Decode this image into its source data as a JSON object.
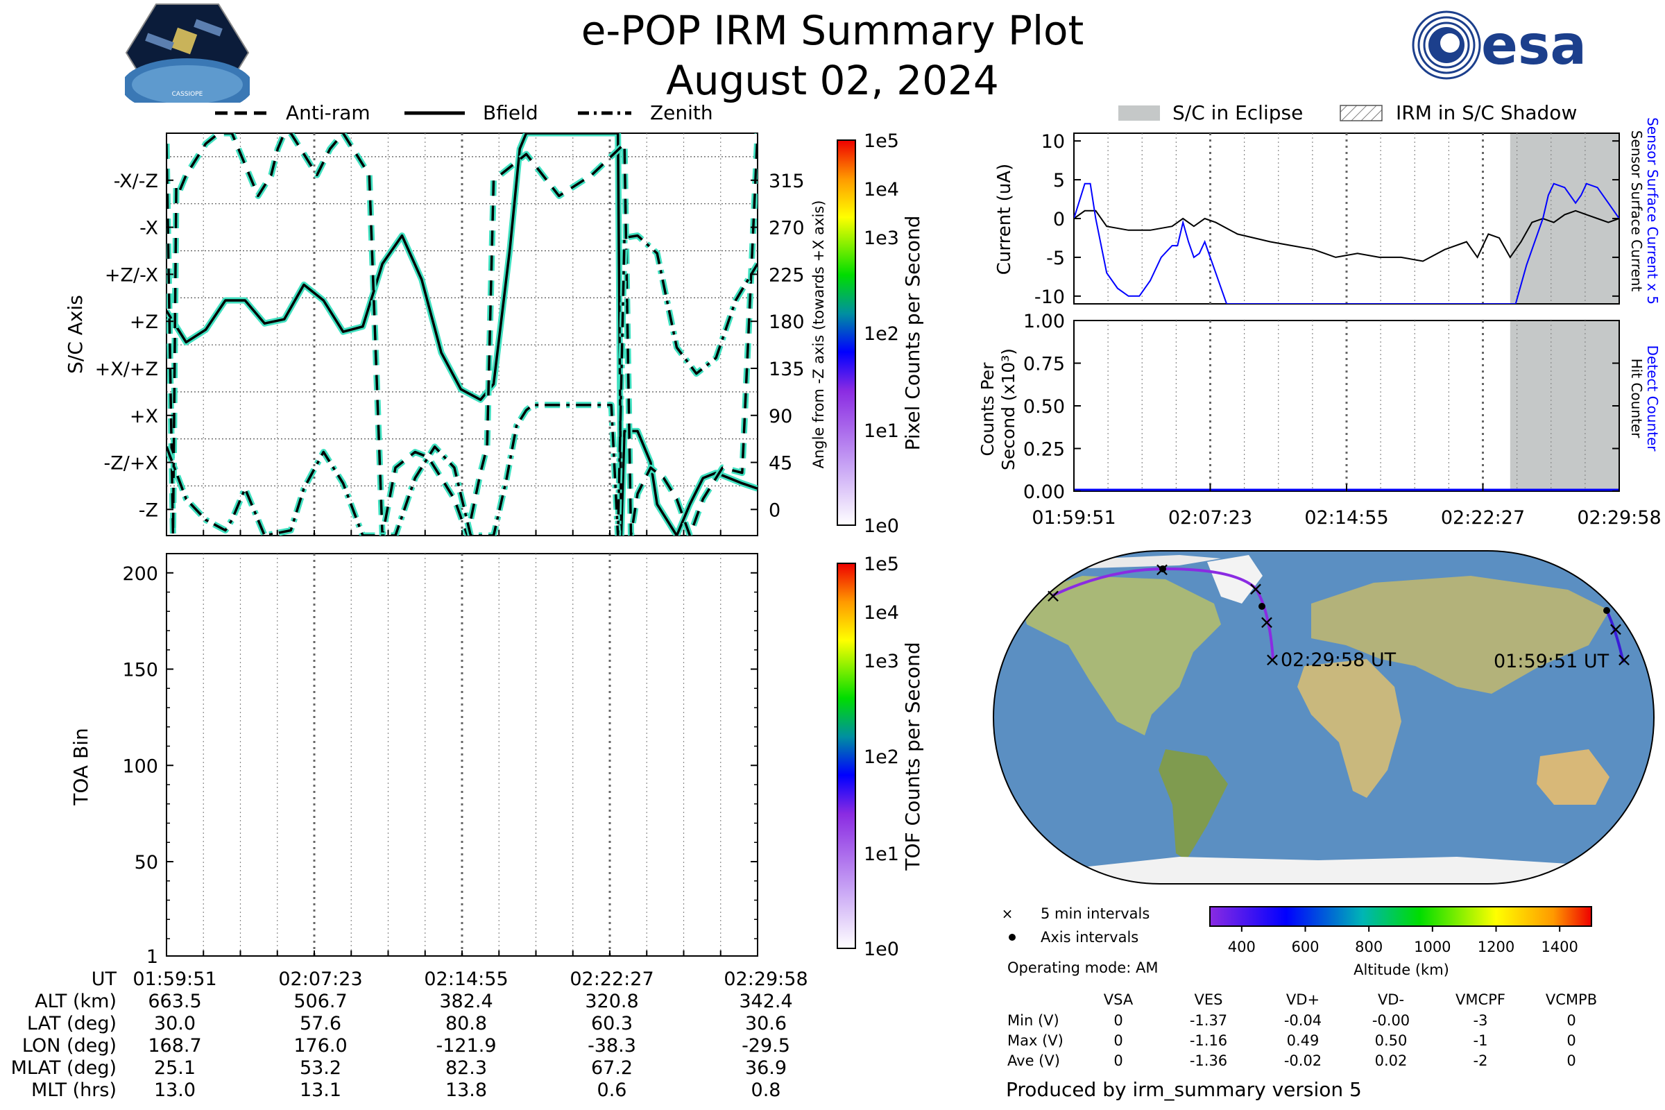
{
  "header": {
    "title_line1": "e-POP IRM Summary Plot",
    "title_line2": "August 02, 2024",
    "left_logo": "CASSIOPE mission patch",
    "left_logo_text": "CASSIOPE",
    "right_logo_text": "esa"
  },
  "chart_data": [
    {
      "type": "line",
      "title": "",
      "ylabel": "S/C Axis",
      "ylabel_right": "Angle from -Z axis (towards +X axis)",
      "yticks_left": [
        "-X/-Z",
        "-X",
        "+Z/-X",
        "+Z",
        "+X/+Z",
        "+X",
        "-Z/+X",
        "-Z"
      ],
      "yticks_right": [
        "315",
        "270",
        "225",
        "180",
        "135",
        "90",
        "45",
        "0"
      ],
      "ylim": [
        -25,
        360
      ],
      "xlim": [
        0,
        1807
      ],
      "legend": [
        "Anti-ram",
        "Bfield",
        "Zenith"
      ],
      "legend_placement": "top",
      "colorbar": {
        "label": "Pixel Counts per Second",
        "ticks": [
          "1e5",
          "1e4",
          "1e3",
          "1e2",
          "1e1",
          "1e0"
        ]
      },
      "series": [
        {
          "name": "Bfield",
          "x": [
            0,
            60,
            120,
            180,
            240,
            300,
            360,
            420,
            480,
            540,
            600,
            660,
            720,
            780,
            840,
            900,
            960,
            1000,
            1050,
            1080,
            1100,
            1200,
            1260,
            1300,
            1340,
            1380,
            1390,
            1400,
            1440,
            1480,
            1500,
            1560,
            1600,
            1640,
            1680,
            1720,
            1760,
            1807
          ],
          "y": [
            190,
            160,
            172,
            200,
            200,
            178,
            182,
            215,
            200,
            170,
            175,
            235,
            262,
            220,
            150,
            115,
            105,
            120,
            250,
            345,
            360,
            360,
            360,
            360,
            360,
            360,
            -25,
            75,
            75,
            45,
            5,
            -25,
            5,
            30,
            35,
            30,
            25,
            20
          ]
        },
        {
          "name": "Anti-ram",
          "x": [
            0,
            20,
            30,
            40,
            60,
            120,
            160,
            200,
            240,
            280,
            320,
            340,
            360,
            380,
            420,
            460,
            500,
            540,
            580,
            620,
            660,
            700,
            760,
            800,
            840,
            880,
            920,
            960,
            980,
            1000,
            1100,
            1200,
            1300,
            1400,
            1420,
            1440,
            1480,
            1520,
            1560,
            1600,
            1640,
            1700,
            1760,
            1807
          ],
          "y": [
            350,
            -25,
            310,
            305,
            320,
            350,
            360,
            360,
            330,
            300,
            320,
            345,
            360,
            360,
            340,
            320,
            345,
            360,
            340,
            320,
            -25,
            40,
            55,
            50,
            30,
            10,
            -25,
            35,
            60,
            315,
            340,
            300,
            320,
            350,
            -25,
            15,
            40,
            30,
            10,
            -25,
            10,
            40,
            35,
            360
          ]
        },
        {
          "name": "Zenith",
          "x": [
            0,
            60,
            120,
            180,
            200,
            240,
            300,
            380,
            420,
            480,
            540,
            600,
            640,
            700,
            760,
            820,
            880,
            930,
            960,
            1000,
            1040,
            1070,
            1100,
            1120,
            1140,
            1200,
            1280,
            1320,
            1360,
            1380,
            1400,
            1440,
            1500,
            1560,
            1620,
            1680,
            1740,
            1807
          ],
          "y": [
            60,
            10,
            -10,
            -20,
            -10,
            20,
            -25,
            -20,
            20,
            55,
            25,
            -25,
            -25,
            -25,
            30,
            60,
            40,
            -25,
            -25,
            -25,
            30,
            80,
            95,
            100,
            100,
            100,
            100,
            100,
            100,
            -25,
            260,
            262,
            245,
            155,
            130,
            145,
            200,
            235
          ]
        }
      ]
    },
    {
      "type": "heatmap",
      "ylabel": "TOA Bin",
      "yticks": [
        "200",
        "150",
        "100",
        "50",
        "1"
      ],
      "ylim": [
        1,
        210
      ],
      "xticks": [
        "01:59:51",
        "02:07:23",
        "02:14:55",
        "02:22:27",
        "02:29:58"
      ],
      "colorbar": {
        "label": "TOF Counts per Second",
        "ticks": [
          "1e5",
          "1e4",
          "1e3",
          "1e2",
          "1e1",
          "1e0"
        ]
      }
    },
    {
      "type": "line",
      "ylabel": "Current (uA)",
      "yticks": [
        "10",
        "5",
        "0",
        "-5",
        "-10"
      ],
      "ylim": [
        -11,
        11
      ],
      "right_labels": [
        "Sensor Surface Current x 5",
        "Sensor Surface Current"
      ],
      "legend": [
        "S/C in Eclipse",
        "IRM in S/C Shadow"
      ],
      "legend_placement": "top",
      "shaded_regions": [
        {
          "label": "S/C in Eclipse",
          "x": [
            0.8,
            1.0
          ]
        }
      ],
      "series": [
        {
          "name": "Sensor Surface Current",
          "color": "#000000",
          "x": [
            0,
            0.02,
            0.04,
            0.06,
            0.1,
            0.14,
            0.18,
            0.2,
            0.22,
            0.24,
            0.26,
            0.3,
            0.36,
            0.4,
            0.44,
            0.48,
            0.52,
            0.56,
            0.6,
            0.64,
            0.68,
            0.72,
            0.74,
            0.76,
            0.78,
            0.8,
            0.82,
            0.84,
            0.86,
            0.88,
            0.9,
            0.92,
            0.94,
            0.96,
            0.98,
            1.0
          ],
          "y": [
            0,
            1,
            1,
            -1,
            -1.5,
            -1.5,
            -1,
            0,
            -1,
            0,
            -0.5,
            -2,
            -3,
            -3.5,
            -4,
            -5,
            -4.5,
            -5,
            -5,
            -5.5,
            -4,
            -3,
            -5,
            -2,
            -2.5,
            -5,
            -3,
            -0.5,
            0,
            -0.5,
            0.5,
            1,
            0.5,
            0,
            -0.5,
            0
          ]
        },
        {
          "name": "Sensor Surface Current x 5",
          "color": "#0000ff",
          "x": [
            0,
            0.02,
            0.03,
            0.04,
            0.06,
            0.08,
            0.1,
            0.12,
            0.14,
            0.16,
            0.18,
            0.19,
            0.2,
            0.21,
            0.22,
            0.23,
            0.24,
            0.25,
            0.26,
            0.27,
            0.28,
            0.3,
            0.81,
            0.83,
            0.85,
            0.86,
            0.87,
            0.88,
            0.9,
            0.92,
            0.93,
            0.94,
            0.96,
            0.98,
            1.0
          ],
          "y": [
            0,
            4.5,
            4.5,
            0,
            -7,
            -9,
            -10,
            -10,
            -8,
            -5,
            -3.5,
            -3.5,
            -0.5,
            -3,
            -5,
            -4.5,
            -3,
            -5,
            -7,
            -9,
            -11,
            -11,
            -11,
            -6,
            -2,
            0,
            3,
            4.5,
            4,
            2,
            3,
            4.5,
            4,
            2,
            0
          ]
        }
      ]
    },
    {
      "type": "line",
      "ylabel": "Counts Per Second (x10³)",
      "yticks": [
        "1.00",
        "0.75",
        "0.50",
        "0.25",
        "0.00"
      ],
      "ylim": [
        0,
        1
      ],
      "right_labels": [
        "Detect Counter",
        "Hit Counter"
      ],
      "xticks": [
        "01:59:51",
        "02:07:23",
        "02:14:55",
        "02:22:27",
        "02:29:58"
      ],
      "series": [
        {
          "name": "Detect Counter",
          "color": "#0000ff",
          "x": [
            0,
            1
          ],
          "y": [
            0,
            0
          ]
        },
        {
          "name": "Hit Counter",
          "color": "#000000",
          "x": [
            0,
            1
          ],
          "y": [
            0,
            0
          ]
        }
      ]
    }
  ],
  "map": {
    "start_label": "01:59:51 UT",
    "end_label": "02:29:58 UT",
    "legend": [
      "5 min intervals",
      "Axis intervals"
    ],
    "operating_mode": "Operating mode: AM",
    "altitude_colorbar": {
      "label": "Altitude (km)",
      "ticks": [
        "400",
        "600",
        "800",
        "1000",
        "1200",
        "1400"
      ]
    }
  },
  "orbit_table": {
    "rows": [
      {
        "label": "UT",
        "values": [
          "01:59:51",
          "02:07:23",
          "02:14:55",
          "02:22:27",
          "02:29:58"
        ]
      },
      {
        "label": "ALT (km)",
        "values": [
          "663.5",
          "506.7",
          "382.4",
          "320.8",
          "342.4"
        ]
      },
      {
        "label": "LAT (deg)",
        "values": [
          "30.0",
          "57.6",
          "80.8",
          "60.3",
          "30.6"
        ]
      },
      {
        "label": "LON (deg)",
        "values": [
          "168.7",
          "176.0",
          "-121.9",
          "-38.3",
          "-29.5"
        ]
      },
      {
        "label": "MLAT (deg)",
        "values": [
          "25.1",
          "53.2",
          "82.3",
          "67.2",
          "36.9"
        ]
      },
      {
        "label": "MLT (hrs)",
        "values": [
          "13.0",
          "13.1",
          "13.8",
          "0.6",
          "0.8"
        ]
      }
    ]
  },
  "voltage_table": {
    "columns": [
      "VSA",
      "VES",
      "VD+",
      "VD-",
      "VMCPF",
      "VCMPB"
    ],
    "rows": [
      {
        "label": "Min (V)",
        "values": [
          "0",
          "-1.37",
          "-0.04",
          "-0.00",
          "-3",
          "0"
        ]
      },
      {
        "label": "Max (V)",
        "values": [
          "0",
          "-1.16",
          "0.49",
          "0.50",
          "-1",
          "0"
        ]
      },
      {
        "label": "Ave (V)",
        "values": [
          "0",
          "-1.36",
          "-0.02",
          "0.02",
          "-2",
          "0"
        ]
      }
    ]
  },
  "footer": {
    "produced_by": "Produced by irm_summary version 5"
  }
}
